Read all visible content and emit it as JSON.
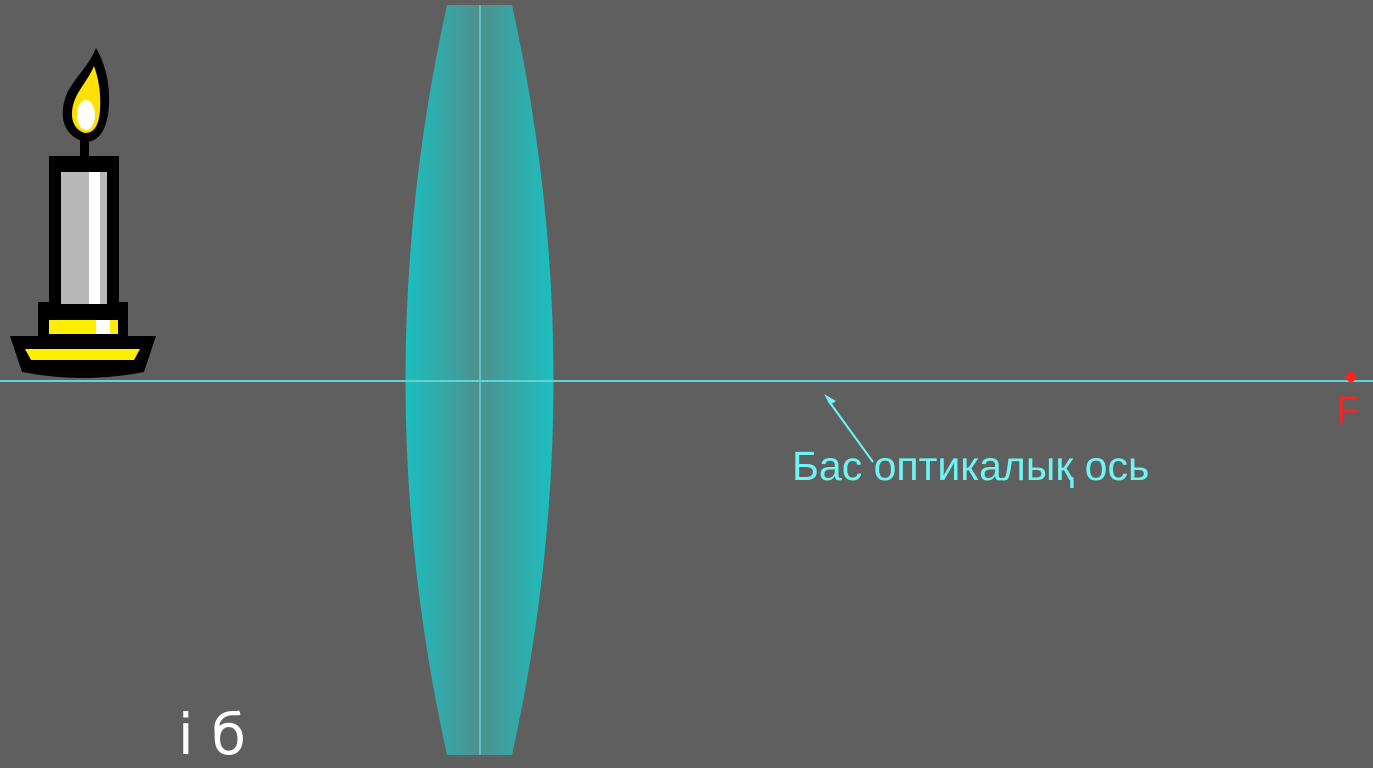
{
  "diagram": {
    "axis_label": "Бас оптикалық ось",
    "focus_label": "F",
    "bottom_text": "і б",
    "colors": {
      "background": "#5f5f5f",
      "lens": "#1bbfbf",
      "lens_center": "#4f8f8f",
      "axis": "#5ed4d4",
      "axis_label": "#6ff3f3",
      "focus": "#ff2020",
      "candle_body": "#b8b8b8",
      "candle_flame": "#ffe000",
      "candle_holder": "#ffee00",
      "outline": "#000000"
    },
    "icons": [
      "candle-icon",
      "lens-icon",
      "focus-point-icon",
      "arrow-icon"
    ]
  }
}
